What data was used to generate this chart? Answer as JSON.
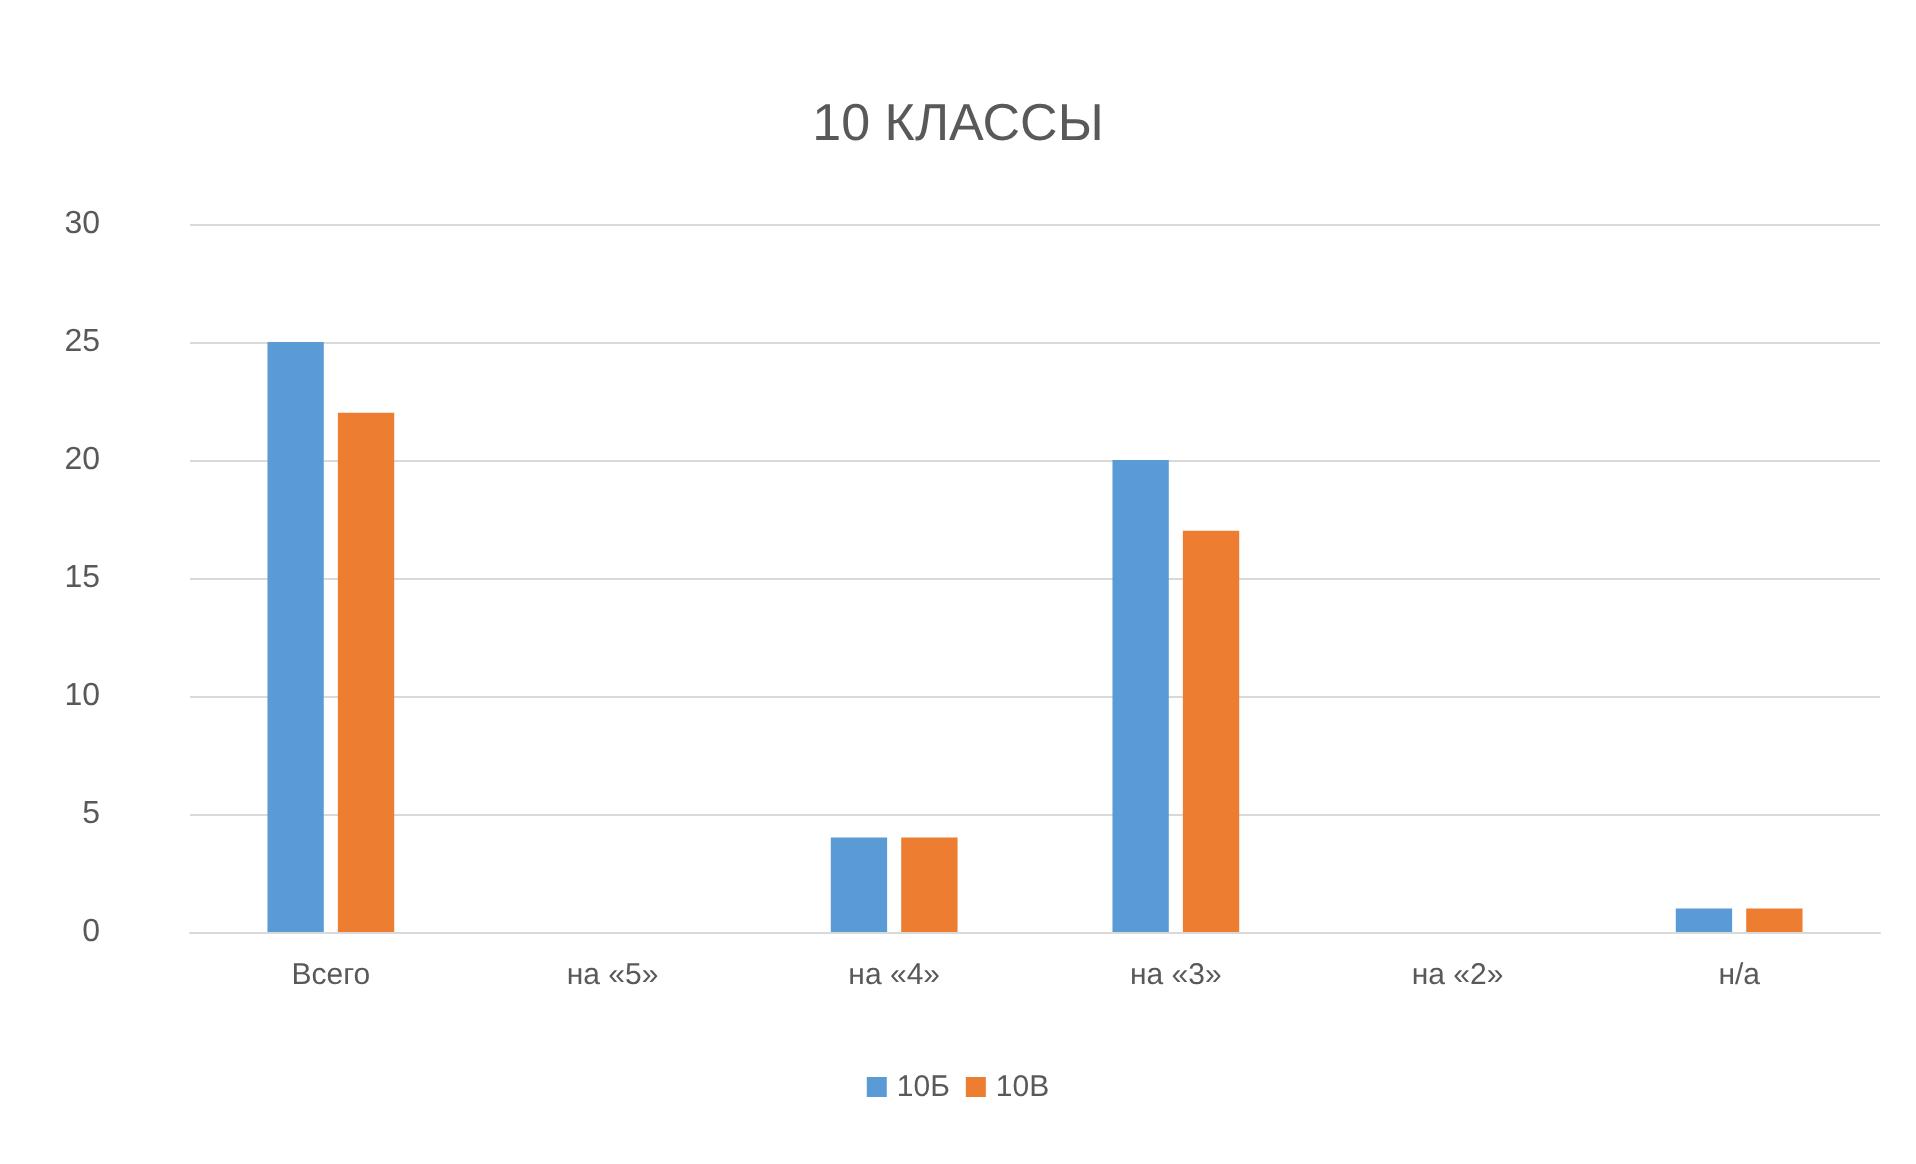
{
  "chart_data": {
    "type": "bar",
    "title": "10 КЛАССЫ",
    "categories": [
      "Всего",
      "на «5»",
      "на «4»",
      "на «3»",
      "на «2»",
      "н/а"
    ],
    "series": [
      {
        "name": "10Б",
        "color": "#5b9bd5",
        "values": [
          25,
          0,
          4,
          20,
          0,
          1
        ]
      },
      {
        "name": "10В",
        "color": "#ed7d31",
        "values": [
          22,
          0,
          4,
          17,
          0,
          1
        ]
      }
    ],
    "ylim": [
      0,
      30
    ],
    "yticks": [
      0,
      5,
      10,
      15,
      20,
      25,
      30
    ],
    "grid": "y",
    "legend": "bottom"
  }
}
